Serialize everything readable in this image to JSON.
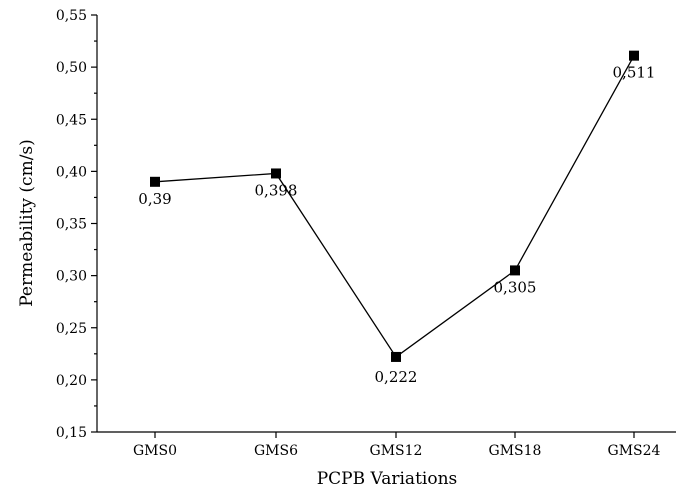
{
  "chart_data": {
    "type": "line",
    "title": "",
    "xlabel": "PCPB Variations",
    "ylabel": "Permeability (cm/s)",
    "categories": [
      "GMS0",
      "GMS6",
      "GMS12",
      "GMS18",
      "GMS24"
    ],
    "series": [
      {
        "values": [
          0.39,
          0.398,
          0.222,
          0.305,
          0.511
        ]
      }
    ],
    "data_labels": [
      "0,39",
      "0,398",
      "0,222",
      "0,305",
      "0,511"
    ],
    "ylim": [
      0.15,
      0.55
    ],
    "yticks": [
      0.15,
      0.2,
      0.25,
      0.3,
      0.35,
      0.4,
      0.45,
      0.5,
      0.55
    ],
    "ytick_labels": [
      "0,15",
      "0,20",
      "0,25",
      "0,30",
      "0,35",
      "0,40",
      "0,45",
      "0,50",
      "0,55"
    ],
    "marker": "square",
    "line_color": "#000000",
    "grid": false,
    "legend": "none"
  }
}
